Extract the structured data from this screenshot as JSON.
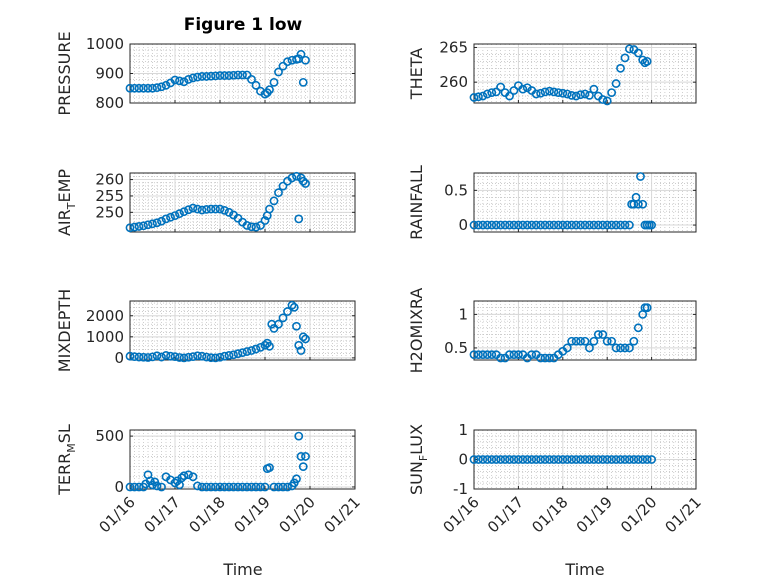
{
  "figure": {
    "title": "Figure 1 low",
    "xlabel": "Time"
  },
  "colors": {
    "marker": "#0072BD",
    "grid": "#b0b0b0",
    "axis": "#262626"
  },
  "chart_data": [
    {
      "type": "scatter",
      "ylabel": "PRESSURE",
      "ylabel_sub": "",
      "ylim": [
        800,
        1000
      ],
      "yticks": [
        "800",
        "900",
        "1000"
      ],
      "ytick_values": [
        800,
        900,
        1000
      ],
      "xlim": [
        0,
        5
      ],
      "xticks": [],
      "grid": true,
      "x": [
        0.0,
        0.1,
        0.2,
        0.3,
        0.4,
        0.5,
        0.6,
        0.7,
        0.8,
        0.9,
        1.0,
        1.1,
        1.2,
        1.3,
        1.4,
        1.5,
        1.6,
        1.7,
        1.8,
        1.9,
        2.0,
        2.1,
        2.2,
        2.3,
        2.4,
        2.5,
        2.6,
        2.7,
        2.8,
        2.9,
        3.0,
        3.05,
        3.1,
        3.2,
        3.3,
        3.4,
        3.5,
        3.6,
        3.7,
        3.75,
        3.8,
        3.85,
        3.9
      ],
      "y": [
        850,
        850,
        850,
        850,
        850,
        850,
        852,
        855,
        860,
        868,
        878,
        875,
        872,
        880,
        885,
        888,
        890,
        890,
        891,
        892,
        893,
        893,
        893,
        894,
        895,
        895,
        895,
        880,
        860,
        840,
        830,
        835,
        845,
        870,
        905,
        925,
        940,
        945,
        948,
        950,
        965,
        870,
        945
      ]
    },
    {
      "type": "scatter",
      "ylabel": "THETA",
      "ylabel_sub": "",
      "ylim": [
        257,
        265.5
      ],
      "yticks": [
        "260",
        "265"
      ],
      "ytick_values": [
        260,
        265
      ],
      "xlim": [
        0,
        5
      ],
      "xticks": [],
      "grid": true,
      "x": [
        0.0,
        0.1,
        0.2,
        0.3,
        0.4,
        0.5,
        0.6,
        0.7,
        0.8,
        0.9,
        1.0,
        1.1,
        1.2,
        1.3,
        1.4,
        1.5,
        1.6,
        1.7,
        1.8,
        1.9,
        2.0,
        2.1,
        2.2,
        2.3,
        2.4,
        2.5,
        2.6,
        2.7,
        2.8,
        2.9,
        3.0,
        3.1,
        3.2,
        3.3,
        3.4,
        3.5,
        3.6,
        3.7,
        3.8,
        3.85,
        3.9
      ],
      "y": [
        257.8,
        257.9,
        258.0,
        258.3,
        258.5,
        258.6,
        259.3,
        258.5,
        258.0,
        258.8,
        259.5,
        259.0,
        259.2,
        258.8,
        258.3,
        258.4,
        258.6,
        258.7,
        258.6,
        258.5,
        258.4,
        258.3,
        258.1,
        258.0,
        258.2,
        258.3,
        258.1,
        259.0,
        258.0,
        257.5,
        257.3,
        258.5,
        259.8,
        262.0,
        263.5,
        264.8,
        264.7,
        264.2,
        263.2,
        262.8,
        263.0
      ]
    },
    {
      "type": "scatter",
      "ylabel": "AIR",
      "ylabel_sub": "T",
      "ylabel_suffix": "EMP",
      "ylim": [
        244,
        262
      ],
      "yticks": [
        "250",
        "255",
        "260"
      ],
      "ytick_values": [
        250,
        255,
        260
      ],
      "xlim": [
        0,
        5
      ],
      "xticks": [],
      "grid": true,
      "x": [
        0.0,
        0.1,
        0.2,
        0.3,
        0.4,
        0.5,
        0.6,
        0.7,
        0.8,
        0.9,
        1.0,
        1.1,
        1.2,
        1.3,
        1.4,
        1.5,
        1.6,
        1.7,
        1.8,
        1.9,
        2.0,
        2.1,
        2.2,
        2.3,
        2.4,
        2.5,
        2.6,
        2.7,
        2.8,
        2.9,
        3.0,
        3.05,
        3.1,
        3.2,
        3.3,
        3.4,
        3.5,
        3.6,
        3.7,
        3.75,
        3.8,
        3.85,
        3.9
      ],
      "y": [
        245.3,
        245.5,
        245.7,
        245.9,
        246.2,
        246.5,
        246.8,
        247.3,
        248.0,
        248.5,
        249.0,
        249.6,
        250.2,
        250.8,
        251.3,
        251.0,
        250.7,
        250.9,
        251.0,
        251.0,
        251.0,
        250.6,
        250.0,
        249.2,
        248.2,
        247.0,
        246.0,
        245.6,
        245.5,
        246.0,
        247.5,
        249.0,
        251.0,
        253.5,
        256.0,
        258.0,
        259.5,
        260.5,
        261.0,
        248.0,
        260.5,
        259.5,
        258.8
      ]
    },
    {
      "type": "scatter",
      "ylabel": "RAINFALL",
      "ylabel_sub": "",
      "ylim": [
        -0.1,
        0.75
      ],
      "yticks": [
        "0",
        "0.5"
      ],
      "ytick_values": [
        0,
        0.5
      ],
      "xlim": [
        0,
        5
      ],
      "xticks": [],
      "grid": true,
      "x": [
        0.0,
        0.1,
        0.2,
        0.3,
        0.4,
        0.5,
        0.6,
        0.7,
        0.8,
        0.9,
        1.0,
        1.1,
        1.2,
        1.3,
        1.4,
        1.5,
        1.6,
        1.7,
        1.8,
        1.9,
        2.0,
        2.1,
        2.2,
        2.3,
        2.4,
        2.5,
        2.6,
        2.7,
        2.8,
        2.9,
        3.0,
        3.1,
        3.2,
        3.3,
        3.4,
        3.5,
        3.55,
        3.6,
        3.65,
        3.7,
        3.75,
        3.8,
        3.85,
        3.9,
        3.95,
        4.0
      ],
      "y": [
        0,
        0,
        0,
        0,
        0,
        0,
        0,
        0,
        0,
        0,
        0,
        0,
        0,
        0,
        0,
        0,
        0,
        0,
        0,
        0,
        0,
        0,
        0,
        0,
        0,
        0,
        0,
        0,
        0,
        0,
        0,
        0,
        0,
        0,
        0,
        0,
        0.3,
        0.3,
        0.4,
        0.3,
        0.7,
        0.3,
        0,
        0,
        0,
        0
      ]
    },
    {
      "type": "scatter",
      "ylabel": "MIXDEPTH",
      "ylabel_sub": "",
      "ylim": [
        -100,
        2700
      ],
      "yticks": [
        "0",
        "1000",
        "2000"
      ],
      "ytick_values": [
        0,
        1000,
        2000
      ],
      "xlim": [
        0,
        5
      ],
      "xticks": [],
      "grid": true,
      "x": [
        0.0,
        0.1,
        0.2,
        0.3,
        0.4,
        0.5,
        0.6,
        0.7,
        0.8,
        0.9,
        1.0,
        1.1,
        1.2,
        1.3,
        1.4,
        1.5,
        1.6,
        1.7,
        1.8,
        1.9,
        2.0,
        2.1,
        2.2,
        2.3,
        2.4,
        2.5,
        2.6,
        2.7,
        2.8,
        2.9,
        3.0,
        3.05,
        3.1,
        3.15,
        3.2,
        3.3,
        3.4,
        3.5,
        3.6,
        3.65,
        3.7,
        3.75,
        3.8,
        3.85,
        3.9
      ],
      "y": [
        80,
        60,
        40,
        30,
        20,
        50,
        100,
        40,
        120,
        80,
        60,
        20,
        0,
        30,
        60,
        100,
        80,
        40,
        10,
        0,
        30,
        80,
        120,
        150,
        200,
        250,
        300,
        350,
        420,
        500,
        600,
        700,
        550,
        1600,
        1400,
        1600,
        1900,
        2200,
        2500,
        2400,
        1500,
        600,
        350,
        1000,
        900
      ]
    },
    {
      "type": "scatter",
      "ylabel": "H2OMIXRA",
      "ylabel_sub": "",
      "ylim": [
        0.32,
        1.2
      ],
      "yticks": [
        "0.5",
        "1"
      ],
      "ytick_values": [
        0.5,
        1.0
      ],
      "xlim": [
        0,
        5
      ],
      "xticks": [],
      "grid": true,
      "x": [
        0.0,
        0.1,
        0.2,
        0.3,
        0.4,
        0.5,
        0.6,
        0.7,
        0.8,
        0.9,
        1.0,
        1.1,
        1.2,
        1.3,
        1.4,
        1.5,
        1.6,
        1.7,
        1.8,
        1.9,
        2.0,
        2.1,
        2.2,
        2.3,
        2.4,
        2.5,
        2.6,
        2.7,
        2.8,
        2.9,
        3.0,
        3.1,
        3.2,
        3.3,
        3.4,
        3.5,
        3.6,
        3.7,
        3.8,
        3.85,
        3.9
      ],
      "y": [
        0.4,
        0.4,
        0.4,
        0.4,
        0.4,
        0.4,
        0.35,
        0.35,
        0.4,
        0.4,
        0.4,
        0.4,
        0.35,
        0.4,
        0.4,
        0.35,
        0.35,
        0.35,
        0.35,
        0.4,
        0.45,
        0.5,
        0.6,
        0.6,
        0.6,
        0.6,
        0.5,
        0.6,
        0.7,
        0.7,
        0.6,
        0.6,
        0.5,
        0.5,
        0.5,
        0.5,
        0.6,
        0.8,
        1.0,
        1.1,
        1.1
      ]
    },
    {
      "type": "scatter",
      "ylabel": "TERR",
      "ylabel_sub": "M",
      "ylabel_suffix": "SL",
      "ylim": [
        -20,
        560
      ],
      "yticks": [
        "0",
        "500"
      ],
      "ytick_values": [
        0,
        500
      ],
      "xlim": [
        0,
        5
      ],
      "xticks": [
        "01/16",
        "01/17",
        "01/18",
        "01/19",
        "01/20",
        "01/21"
      ],
      "xtick_values": [
        0,
        1,
        2,
        3,
        4,
        5
      ],
      "grid": true,
      "x": [
        0.0,
        0.1,
        0.2,
        0.3,
        0.35,
        0.4,
        0.45,
        0.5,
        0.55,
        0.6,
        0.7,
        0.8,
        0.9,
        1.0,
        1.05,
        1.1,
        1.15,
        1.2,
        1.3,
        1.4,
        1.5,
        1.6,
        1.7,
        1.8,
        1.9,
        2.0,
        2.1,
        2.2,
        2.3,
        2.4,
        2.5,
        2.6,
        2.7,
        2.8,
        2.9,
        3.0,
        3.05,
        3.1,
        3.2,
        3.3,
        3.4,
        3.5,
        3.6,
        3.65,
        3.7,
        3.75,
        3.8,
        3.85,
        3.9
      ],
      "y": [
        0,
        0,
        0,
        0,
        30,
        120,
        60,
        20,
        50,
        10,
        0,
        100,
        70,
        40,
        60,
        20,
        90,
        110,
        120,
        100,
        10,
        0,
        0,
        0,
        0,
        0,
        0,
        0,
        0,
        0,
        0,
        0,
        0,
        0,
        0,
        0,
        180,
        190,
        0,
        0,
        0,
        0,
        10,
        40,
        80,
        500,
        300,
        200,
        300
      ]
    },
    {
      "type": "scatter",
      "ylabel": "SUN",
      "ylabel_sub": "F",
      "ylabel_suffix": "LUX",
      "ylim": [
        -1,
        1
      ],
      "yticks": [
        "-1",
        "0",
        "1"
      ],
      "ytick_values": [
        -1,
        0,
        1
      ],
      "xlim": [
        0,
        5
      ],
      "xticks": [
        "01/16",
        "01/17",
        "01/18",
        "01/19",
        "01/20",
        "01/21"
      ],
      "xtick_values": [
        0,
        1,
        2,
        3,
        4,
        5
      ],
      "grid": true,
      "x": [
        0.0,
        0.1,
        0.2,
        0.3,
        0.4,
        0.5,
        0.6,
        0.7,
        0.8,
        0.9,
        1.0,
        1.1,
        1.2,
        1.3,
        1.4,
        1.5,
        1.6,
        1.7,
        1.8,
        1.9,
        2.0,
        2.1,
        2.2,
        2.3,
        2.4,
        2.5,
        2.6,
        2.7,
        2.8,
        2.9,
        3.0,
        3.1,
        3.2,
        3.3,
        3.4,
        3.5,
        3.6,
        3.7,
        3.8,
        3.9,
        4.0
      ],
      "y": [
        0,
        0,
        0,
        0,
        0,
        0,
        0,
        0,
        0,
        0,
        0,
        0,
        0,
        0,
        0,
        0,
        0,
        0,
        0,
        0,
        0,
        0,
        0,
        0,
        0,
        0,
        0,
        0,
        0,
        0,
        0,
        0,
        0,
        0,
        0,
        0,
        0,
        0,
        0,
        0,
        0
      ]
    }
  ]
}
